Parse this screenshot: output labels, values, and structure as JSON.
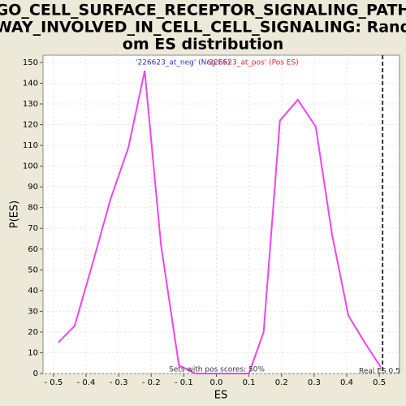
{
  "chart_data": {
    "type": "line",
    "title_lines": [
      "GO_CELL_SURFACE_RECEPTOR_SIGNALING_PATH",
      "WAY_INVOLVED_IN_CELL_CELL_SIGNALING: Rand",
      "om ES distribution"
    ],
    "xlabel": "ES",
    "ylabel": "P(ES)",
    "x": [
      -0.485,
      -0.435,
      -0.38,
      -0.325,
      -0.27,
      -0.22,
      -0.17,
      -0.115,
      -0.065,
      0.1,
      0.145,
      0.195,
      0.25,
      0.305,
      0.355,
      0.405,
      0.455,
      0.505
    ],
    "series": [
      {
        "name": "ES distribution",
        "color": "#ee44ee",
        "values": [
          15,
          23,
          53,
          84,
          109,
          146,
          62,
          4,
          0,
          0,
          20,
          122,
          132,
          119,
          67,
          28,
          15,
          3
        ]
      }
    ],
    "legend": [
      {
        "label": "'226623_at_neg' (Neg ES)",
        "color": "#3333cc"
      },
      {
        "label": "'226623_at_pos' (Pos ES)",
        "color": "#dd2222"
      }
    ],
    "real_es": {
      "value": 0.51,
      "label": "Real ES 0.5"
    },
    "annotation": "Sets with pos scores: 50%",
    "xlim": [
      -0.532,
      0.562
    ],
    "ylim": [
      0,
      153.5
    ],
    "xticks": [
      {
        "value": -0.5,
        "label": "- 0.5"
      },
      {
        "value": -0.4,
        "label": "- 0.4"
      },
      {
        "value": -0.3,
        "label": "- 0.3"
      },
      {
        "value": -0.2,
        "label": "- 0.2"
      },
      {
        "value": -0.1,
        "label": "- 0.1"
      },
      {
        "value": 0,
        "label": "0.0"
      },
      0.1,
      0.2,
      0.3,
      0.4,
      0.5
    ],
    "yticks": [
      0,
      10,
      20,
      30,
      40,
      50,
      60,
      70,
      80,
      90,
      100,
      110,
      120,
      130,
      140,
      150
    ],
    "grid": true
  }
}
